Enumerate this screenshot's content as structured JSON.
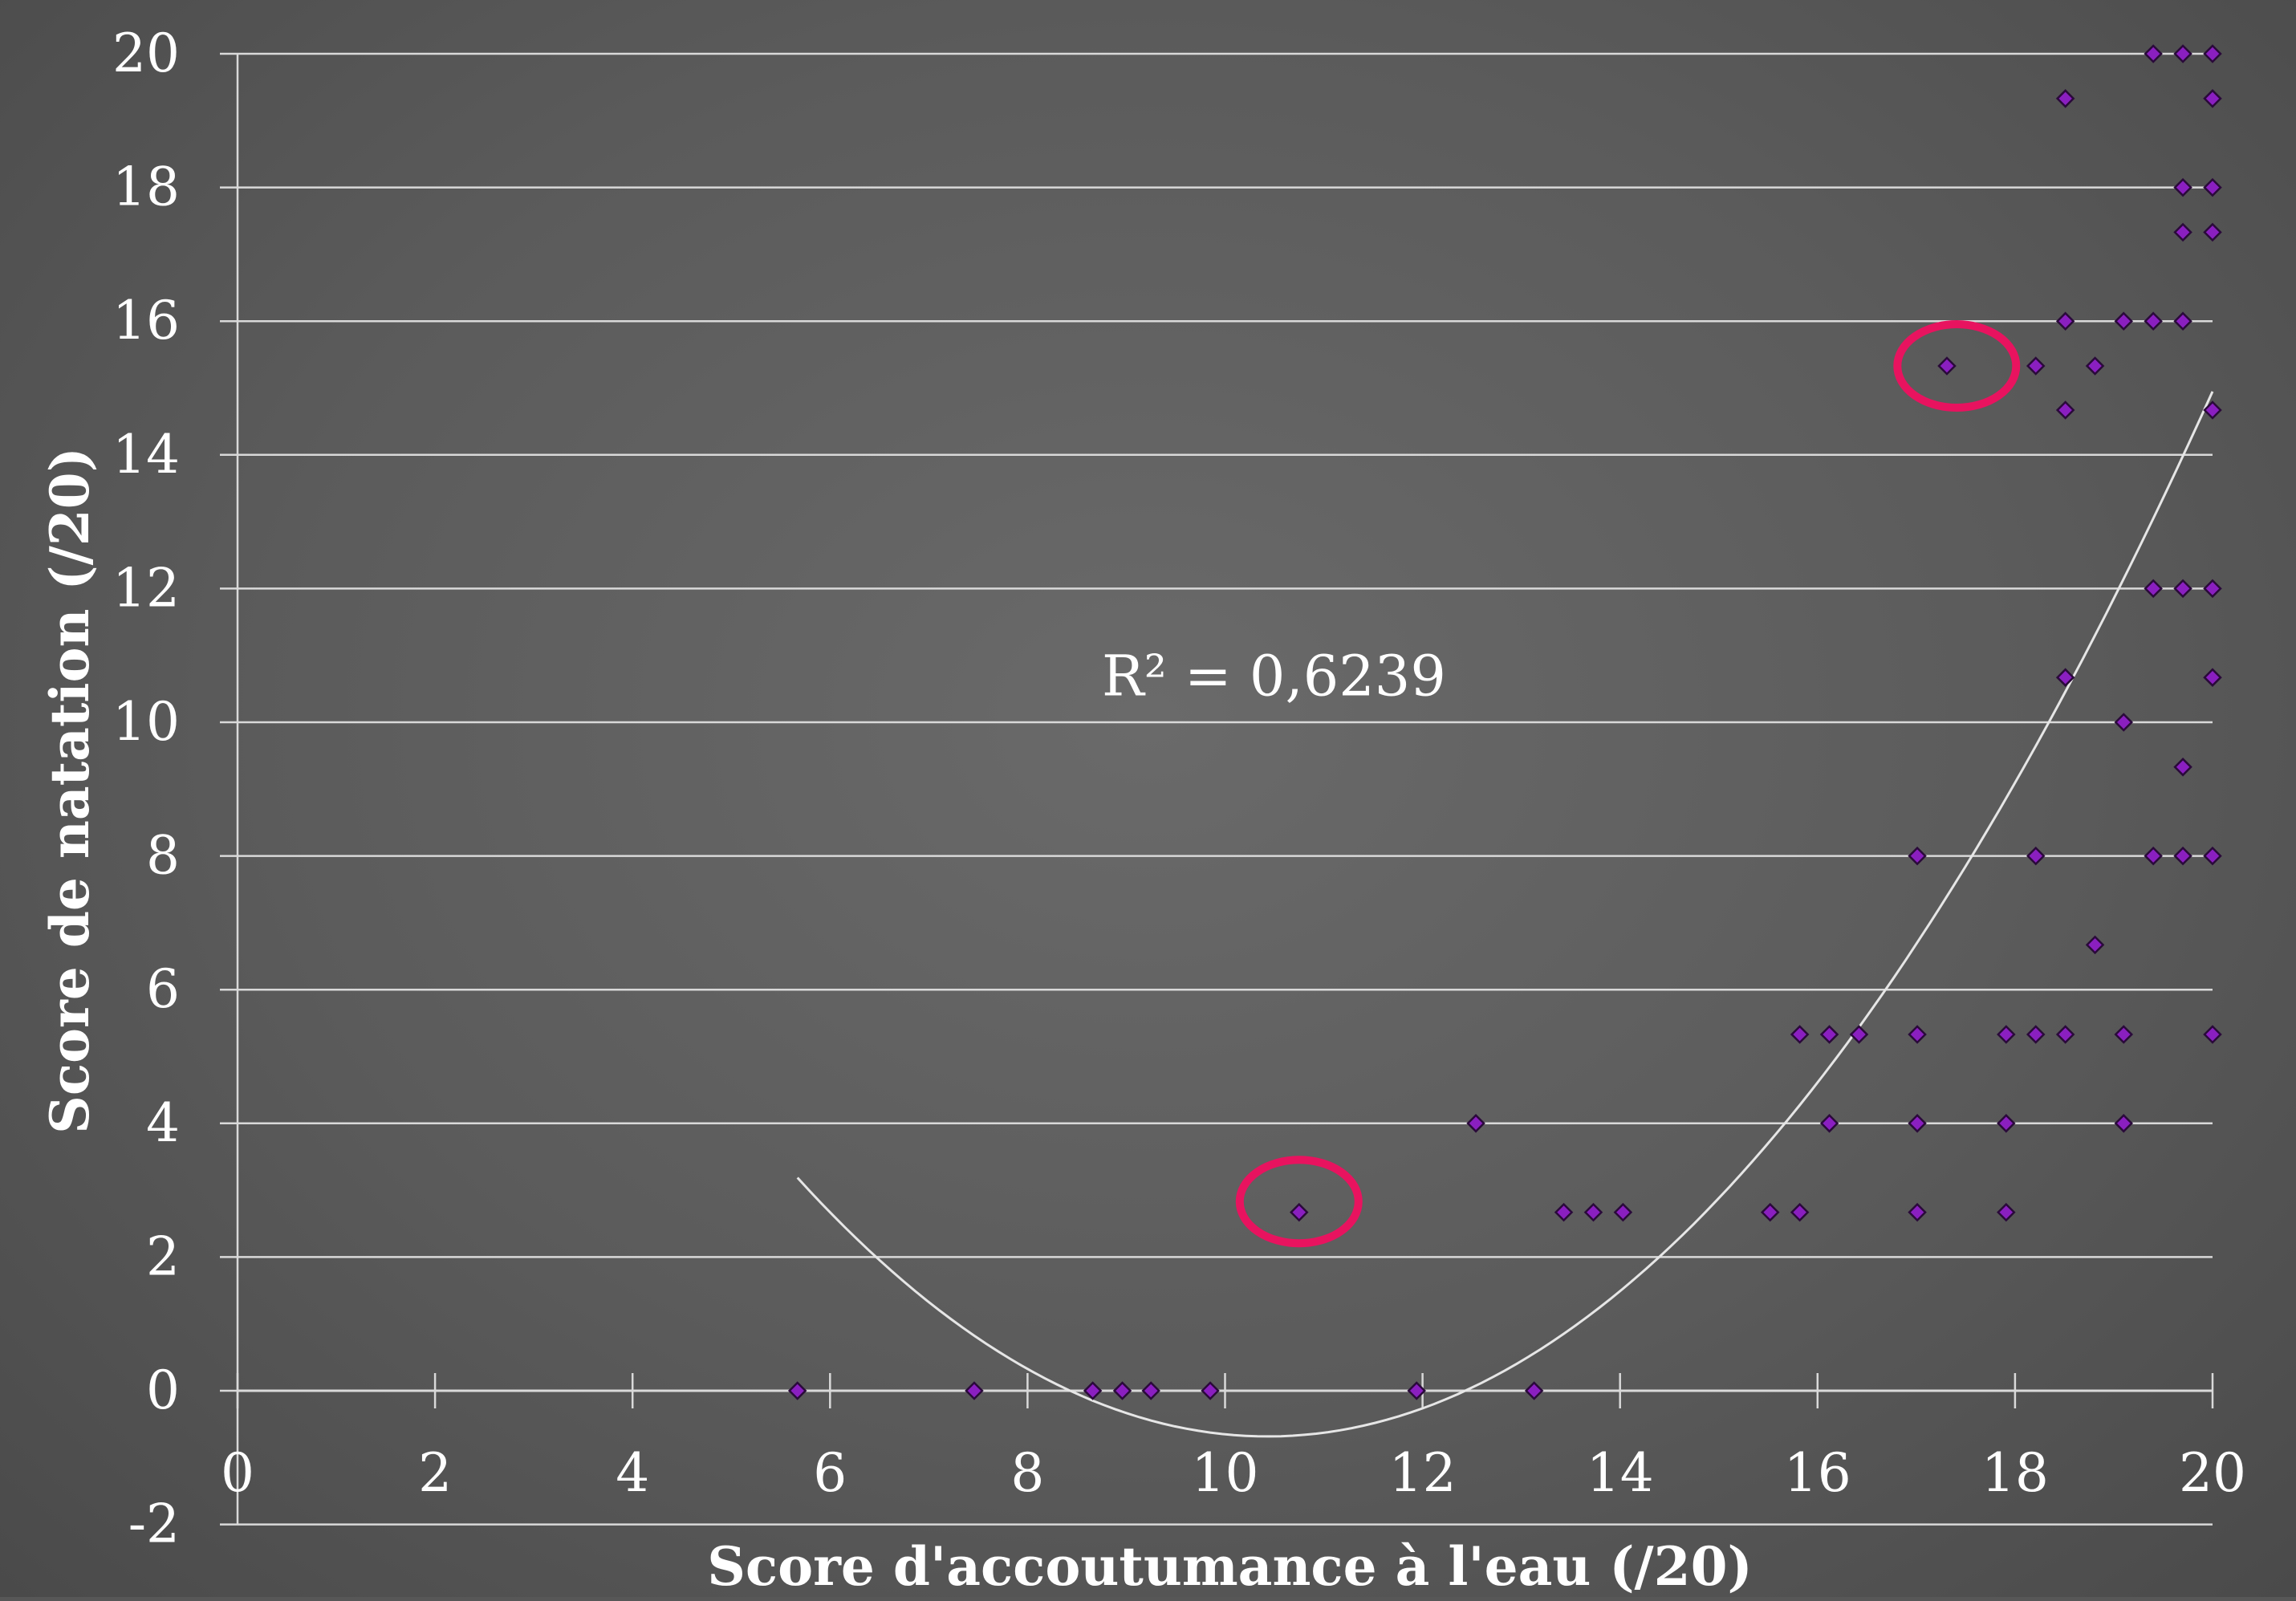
{
  "chart_data": {
    "type": "scatter",
    "xlabel": "Score d'accoutumance à l'eau (/20)",
    "ylabel": "Score de natation (/20)",
    "xlim": [
      0,
      20
    ],
    "ylim": [
      -2,
      20
    ],
    "x_ticks": [
      0,
      2,
      4,
      6,
      8,
      10,
      12,
      14,
      16,
      18,
      20
    ],
    "y_ticks": [
      -2,
      0,
      2,
      4,
      6,
      8,
      10,
      12,
      14,
      16,
      18,
      20
    ],
    "grid": "horizontal",
    "colors": {
      "background": "#5a5a5a",
      "grid": "#d9d9d9",
      "marker": "#8a1fc0",
      "marker_edge": "#2a0a3a",
      "trendline": "#e6e6e6",
      "highlight": "#e8135f",
      "text": "#ffffff"
    },
    "marker": "diamond",
    "series": [
      {
        "points": [
          [
            5.67,
            0
          ],
          [
            7.46,
            0
          ],
          [
            8.66,
            0
          ],
          [
            8.96,
            0
          ],
          [
            9.25,
            0
          ],
          [
            9.85,
            0
          ],
          [
            11.94,
            0
          ],
          [
            13.13,
            0
          ],
          [
            10.75,
            2.67
          ],
          [
            13.43,
            2.67
          ],
          [
            13.73,
            2.67
          ],
          [
            14.03,
            2.67
          ],
          [
            15.52,
            2.67
          ],
          [
            15.82,
            2.67
          ],
          [
            17.01,
            2.67
          ],
          [
            17.91,
            2.67
          ],
          [
            12.54,
            4
          ],
          [
            16.12,
            4
          ],
          [
            17.01,
            4
          ],
          [
            17.91,
            4
          ],
          [
            19.1,
            4
          ],
          [
            15.82,
            5.33
          ],
          [
            16.12,
            5.33
          ],
          [
            16.42,
            5.33
          ],
          [
            17.01,
            5.33
          ],
          [
            17.91,
            5.33
          ],
          [
            18.21,
            5.33
          ],
          [
            18.51,
            5.33
          ],
          [
            19.1,
            5.33
          ],
          [
            20,
            5.33
          ],
          [
            18.81,
            6.67
          ],
          [
            17.01,
            8
          ],
          [
            18.21,
            8
          ],
          [
            19.4,
            8
          ],
          [
            19.7,
            8
          ],
          [
            20,
            8
          ],
          [
            19.7,
            9.33
          ],
          [
            19.1,
            10
          ],
          [
            18.51,
            10.67
          ],
          [
            20,
            10.67
          ],
          [
            19.4,
            12
          ],
          [
            19.7,
            12
          ],
          [
            20,
            12
          ],
          [
            18.51,
            14.67
          ],
          [
            20,
            14.67
          ],
          [
            17.31,
            15.33
          ],
          [
            18.21,
            15.33
          ],
          [
            18.81,
            15.33
          ],
          [
            18.51,
            16
          ],
          [
            19.1,
            16
          ],
          [
            19.4,
            16
          ],
          [
            19.7,
            16
          ],
          [
            19.7,
            17.33
          ],
          [
            20,
            17.33
          ],
          [
            19.7,
            18
          ],
          [
            20,
            18
          ],
          [
            18.51,
            19.33
          ],
          [
            20,
            19.33
          ],
          [
            19.4,
            20
          ],
          [
            19.7,
            20
          ],
          [
            20,
            20
          ]
        ]
      }
    ],
    "trendline": {
      "type": "polynomial-2",
      "x_range": [
        5.67,
        20
      ],
      "points": [
        [
          5.67,
          3.1
        ],
        [
          10.3,
          -0.6
        ],
        [
          12.0,
          0.0
        ],
        [
          16.0,
          4.2
        ],
        [
          20,
          15.1
        ]
      ],
      "label": "R² = 0,6239",
      "label_position": [
        10.5,
        10.7
      ]
    },
    "highlights": [
      {
        "shape": "ellipse",
        "center": [
          10.75,
          2.83
        ]
      },
      {
        "shape": "ellipse",
        "center": [
          17.41,
          15.33
        ]
      }
    ]
  }
}
